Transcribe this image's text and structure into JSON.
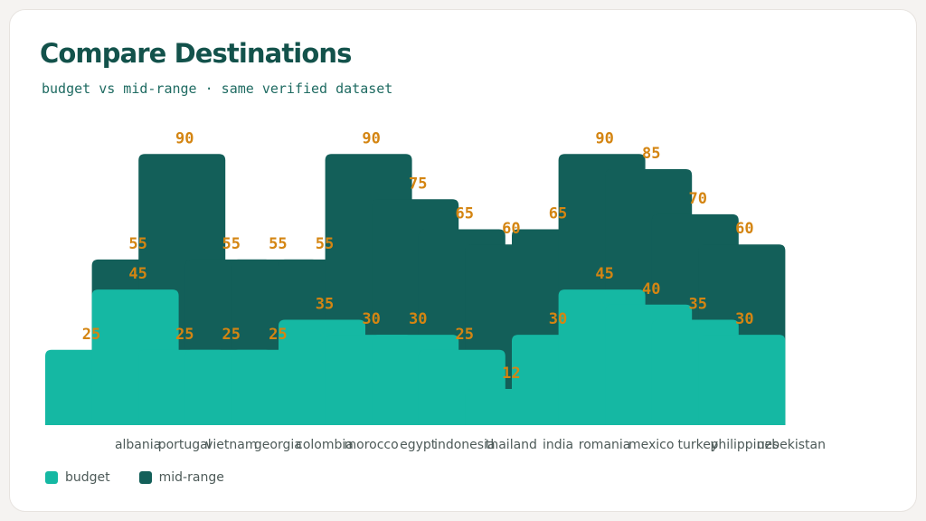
{
  "title": "Compare Destinations",
  "subtitle": "budget vs mid-range · same verified dataset",
  "colors": {
    "budget": "#15b8a3",
    "mid_range": "#135f59",
    "value_label": "#d48512",
    "tick_label": "#4d5a58"
  },
  "legend": [
    {
      "name": "budget",
      "color": "#15b8a3"
    },
    {
      "name": "mid-range",
      "color": "#135f59"
    }
  ],
  "chart_data": {
    "type": "bar",
    "title": "Compare Destinations",
    "xlabel": "",
    "ylabel": "",
    "ylim": [
      0,
      100
    ],
    "grid": false,
    "legend_position": "bottom-left",
    "categories": [
      "",
      "albania",
      "portugal",
      "vietnam",
      "georgia",
      "colombia",
      "morocco",
      "egypt",
      "indonesia",
      "thailand",
      "india",
      "romania",
      "mexico",
      "turkey",
      "philippines",
      "uzbekistan"
    ],
    "series": [
      {
        "name": "budget",
        "values": [
          25,
          45,
          25,
          25,
          25,
          35,
          30,
          30,
          25,
          12,
          30,
          45,
          40,
          35,
          30,
          null
        ]
      },
      {
        "name": "mid-range",
        "values": [
          null,
          55,
          90,
          55,
          55,
          55,
          90,
          75,
          65,
          60,
          65,
          90,
          85,
          70,
          60,
          null
        ]
      }
    ]
  }
}
